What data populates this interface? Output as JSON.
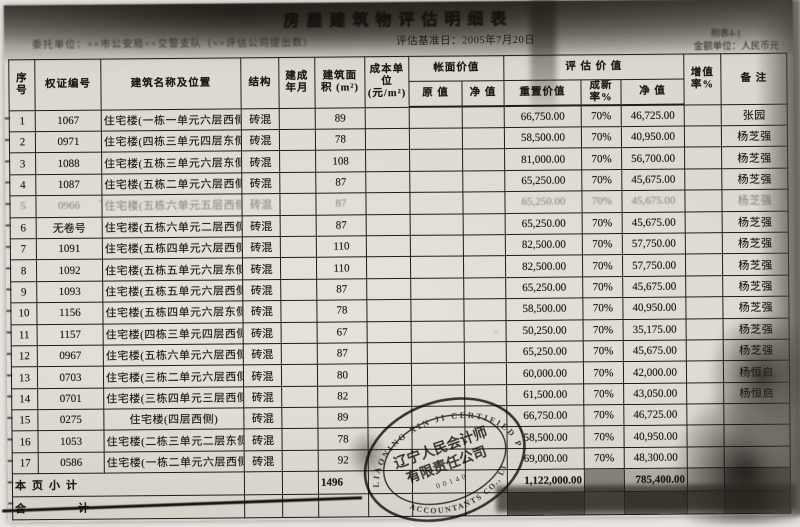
{
  "colors": {
    "paper": "#dcd8d0",
    "ink": "#1b1914",
    "scan_shadow": "#57544a",
    "stamp_ink": "#26231d"
  },
  "header": {
    "title": "房屋建筑物评估明细表",
    "client_line": "委托单位：××市公安局××交警支队（××评估公司提出数）",
    "base_date": "评估基准日：2005年7月20日",
    "ref_no": "附表4-1",
    "unit_note": "金额单位：人民币元"
  },
  "table": {
    "headers": {
      "seq": "序号",
      "cert": "权证编号",
      "name": "建筑名称及位置",
      "struct": "结构",
      "built": "建成 年月",
      "area": "建筑面积 (m²)",
      "cost": "成本单位 (元/m²)",
      "book": "帐面价值",
      "orig": "原 值",
      "net_book": "净 值",
      "eval": "评 估 价 值",
      "replace": "重置价值",
      "rate": "成新率%",
      "net": "净 值",
      "incr": "增值率%",
      "remark": "备  注"
    },
    "rows": [
      {
        "no": "1",
        "cert": "1067",
        "name": "住宅楼(一栋一单元六层西侧)",
        "struct": "砖混",
        "built": "",
        "area": "89",
        "cost": "",
        "orig": "",
        "net_book": "",
        "replace": "66,750.00",
        "rate": "70%",
        "net": "46,725.00",
        "incr": "",
        "remark": "张园"
      },
      {
        "no": "2",
        "cert": "0971",
        "name": "住宅楼(四栋三单元四层东侧)",
        "struct": "砖混",
        "built": "",
        "area": "78",
        "cost": "",
        "orig": "",
        "net_book": "",
        "replace": "58,500.00",
        "rate": "70%",
        "net": "40,950.00",
        "incr": "",
        "remark": "杨芝强"
      },
      {
        "no": "3",
        "cert": "1088",
        "name": "住宅楼(五栋三单元六层东侧)",
        "struct": "砖混",
        "built": "",
        "area": "108",
        "cost": "",
        "orig": "",
        "net_book": "",
        "replace": "81,000.00",
        "rate": "70%",
        "net": "56,700.00",
        "incr": "",
        "remark": "杨芝强"
      },
      {
        "no": "4",
        "cert": "1087",
        "name": "住宅楼(五栋二单元六层西侧)",
        "struct": "砖混",
        "built": "",
        "area": "87",
        "cost": "",
        "orig": "",
        "net_book": "",
        "replace": "65,250.00",
        "rate": "70%",
        "net": "45,675.00",
        "incr": "",
        "remark": "杨芝强"
      },
      {
        "no": "5",
        "cert": "0966",
        "name": "住宅楼(五栋六单元五层西侧)",
        "struct": "砖混",
        "built": "",
        "area": "87",
        "cost": "",
        "orig": "",
        "net_book": "",
        "replace": "65,250.00",
        "rate": "70%",
        "net": "45,675.00",
        "incr": "",
        "remark": "杨芝强",
        "faded": true
      },
      {
        "no": "6",
        "cert": "无卷号",
        "name": "住宅楼(五栋六单元二层西侧)",
        "struct": "砖混",
        "built": "",
        "area": "87",
        "cost": "",
        "orig": "",
        "net_book": "",
        "replace": "65,250.00",
        "rate": "70%",
        "net": "45,675.00",
        "incr": "",
        "remark": "杨芝强"
      },
      {
        "no": "7",
        "cert": "1091",
        "name": "住宅楼(五栋四单元六层西侧)",
        "struct": "砖混",
        "built": "",
        "area": "110",
        "cost": "",
        "orig": "",
        "net_book": "",
        "replace": "82,500.00",
        "rate": "70%",
        "net": "57,750.00",
        "incr": "",
        "remark": "杨芝强"
      },
      {
        "no": "8",
        "cert": "1092",
        "name": "住宅楼(五栋五单元六层东侧)",
        "struct": "砖混",
        "built": "",
        "area": "110",
        "cost": "",
        "orig": "",
        "net_book": "",
        "replace": "82,500.00",
        "rate": "70%",
        "net": "57,750.00",
        "incr": "",
        "remark": "杨芝强"
      },
      {
        "no": "9",
        "cert": "1093",
        "name": "住宅楼(五栋五单元六层西侧)",
        "struct": "砖混",
        "built": "",
        "area": "87",
        "cost": "",
        "orig": "",
        "net_book": "",
        "replace": "65,250.00",
        "rate": "70%",
        "net": "45,675.00",
        "incr": "",
        "remark": "杨芝强"
      },
      {
        "no": "10",
        "cert": "1156",
        "name": "住宅楼(五栋四单元六层东侧)",
        "struct": "砖混",
        "built": "",
        "area": "78",
        "cost": "",
        "orig": "",
        "net_book": "",
        "replace": "58,500.00",
        "rate": "70%",
        "net": "40,950.00",
        "incr": "",
        "remark": "杨芝强"
      },
      {
        "no": "11",
        "cert": "1157",
        "name": "住宅楼(四栋三单元四层西侧)",
        "struct": "砖混",
        "built": "",
        "area": "67",
        "cost": "",
        "orig": "",
        "net_book": "",
        "replace": "50,250.00",
        "rate": "70%",
        "net": "35,175.00",
        "incr": "",
        "remark": "杨芝强"
      },
      {
        "no": "12",
        "cert": "0967",
        "name": "住宅楼(五栋六单元六层西侧)",
        "struct": "砖混",
        "built": "",
        "area": "87",
        "cost": "",
        "orig": "",
        "net_book": "",
        "replace": "65,250.00",
        "rate": "70%",
        "net": "45,675.00",
        "incr": "",
        "remark": "杨芝强"
      },
      {
        "no": "13",
        "cert": "0703",
        "name": "住宅楼(三栋二单元六层西侧)",
        "struct": "砖混",
        "built": "",
        "area": "80",
        "cost": "",
        "orig": "",
        "net_book": "",
        "replace": "60,000.00",
        "rate": "70%",
        "net": "42,000.00",
        "incr": "",
        "remark": "杨恒启"
      },
      {
        "no": "14",
        "cert": "0701",
        "name": "住宅楼(三栋四单元三层西侧)",
        "struct": "砖混",
        "built": "",
        "area": "82",
        "cost": "",
        "orig": "",
        "net_book": "",
        "replace": "61,500.00",
        "rate": "70%",
        "net": "43,050.00",
        "incr": "",
        "remark": "杨恒启"
      },
      {
        "no": "15",
        "cert": "0275",
        "name": "住宅楼(四层西侧)",
        "struct": "砖混",
        "built": "",
        "area": "89",
        "cost": "",
        "orig": "",
        "net_book": "",
        "replace": "66,750.00",
        "rate": "70%",
        "net": "46,725.00",
        "incr": "",
        "remark": ""
      },
      {
        "no": "16",
        "cert": "1053",
        "name": "住宅楼(二栋三单元二层东侧)",
        "struct": "砖混",
        "built": "",
        "area": "78",
        "cost": "",
        "orig": "",
        "net_book": "",
        "replace": "58,500.00",
        "rate": "70%",
        "net": "40,950.00",
        "incr": "",
        "remark": ""
      },
      {
        "no": "17",
        "cert": "0586",
        "name": "住宅楼(一栋二单元六层西侧)",
        "struct": "砖混",
        "built": "",
        "area": "92",
        "cost": "",
        "orig": "",
        "net_book": "",
        "replace": "69,000.00",
        "rate": "70%",
        "net": "48,300.00",
        "incr": "",
        "remark": ""
      }
    ],
    "subtotal": {
      "label": "本页小计",
      "area": "1496",
      "replace": "1,122,000.00",
      "net": "785,400.00"
    },
    "total": {
      "label": "合　　计"
    }
  },
  "stamp": {
    "arc_top": "LIAONING XIN JI CERTIFIED PUBLIC",
    "arc_bottom": "ACCOUNTANTS CO., LTD",
    "line1": "辽宁人民会计师",
    "line2": "有限责任公司",
    "number": "00140"
  }
}
